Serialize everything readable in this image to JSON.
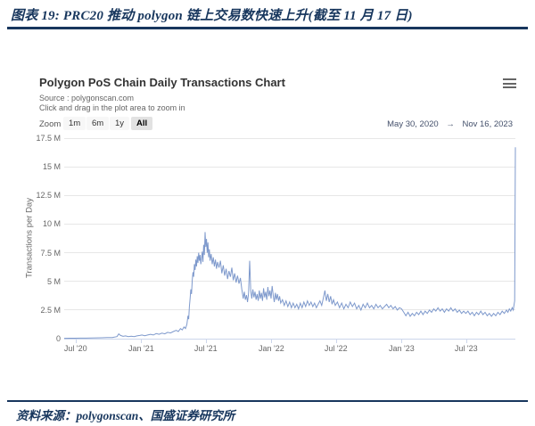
{
  "page": {
    "title": "图表 19:  PRC20 推动 polygon 链上交易数快速上升(截至 11 月 17 日)",
    "footer": "资料来源：polygonscan、国盛证券研究所",
    "accent_color": "#17365d"
  },
  "chart": {
    "source_line": "Source : polygonscan.com",
    "hint_line": "Click and drag in the plot area to zoom in",
    "toolbar": {
      "zoom_label": "Zoom",
      "buttons": [
        "1m",
        "6m",
        "1y",
        "All"
      ],
      "selected": "All",
      "range_from": "May 30, 2020",
      "range_arrow": "→",
      "range_to": "Nov 16, 2023"
    }
  },
  "chart_data": {
    "type": "line",
    "title": "Polygon PoS Chain Daily Transactions Chart",
    "ylabel": "Transactions per Day",
    "xlabel": "",
    "x_start_date": "2020-05-30",
    "x_end_date": "2023-11-16",
    "x_tick_labels": [
      "Jul '20",
      "Jan '21",
      "Jul '21",
      "Jan '22",
      "Jul '22",
      "Jan '23",
      "Jul '23"
    ],
    "x_tick_days": [
      32,
      216,
      397,
      581,
      762,
      946,
      1127
    ],
    "y_tick_labels": [
      "0",
      "2.5 M",
      "5 M",
      "7.5 M",
      "10 M",
      "12.5 M",
      "15 M",
      "17.5 M"
    ],
    "y_tick_values": [
      0,
      2.5,
      5,
      7.5,
      10,
      12.5,
      15,
      17.5
    ],
    "ylim": [
      0,
      17.5
    ],
    "unit": "millions of transactions per day",
    "grid": "horizontal",
    "legend": "none",
    "series": [
      {
        "name": "Transactions per Day",
        "color": "#7e99cc",
        "points_day_value": [
          [
            0,
            0.03
          ],
          [
            15,
            0.04
          ],
          [
            30,
            0.04
          ],
          [
            45,
            0.05
          ],
          [
            60,
            0.05
          ],
          [
            75,
            0.06
          ],
          [
            90,
            0.07
          ],
          [
            105,
            0.08
          ],
          [
            120,
            0.09
          ],
          [
            135,
            0.1
          ],
          [
            148,
            0.18
          ],
          [
            153,
            0.42
          ],
          [
            158,
            0.28
          ],
          [
            165,
            0.2
          ],
          [
            172,
            0.24
          ],
          [
            180,
            0.18
          ],
          [
            188,
            0.22
          ],
          [
            196,
            0.18
          ],
          [
            204,
            0.24
          ],
          [
            212,
            0.28
          ],
          [
            218,
            0.32
          ],
          [
            226,
            0.26
          ],
          [
            234,
            0.32
          ],
          [
            242,
            0.38
          ],
          [
            250,
            0.32
          ],
          [
            258,
            0.44
          ],
          [
            266,
            0.38
          ],
          [
            274,
            0.48
          ],
          [
            282,
            0.42
          ],
          [
            290,
            0.55
          ],
          [
            298,
            0.5
          ],
          [
            306,
            0.62
          ],
          [
            314,
            0.72
          ],
          [
            320,
            0.62
          ],
          [
            326,
            0.88
          ],
          [
            331,
            0.76
          ],
          [
            336,
            1.02
          ],
          [
            340,
            0.88
          ],
          [
            344,
            1.25
          ],
          [
            347,
            2.0
          ],
          [
            349,
            1.7
          ],
          [
            351,
            2.8
          ],
          [
            353,
            3.5
          ],
          [
            355,
            4.3
          ],
          [
            357,
            3.9
          ],
          [
            359,
            5.1
          ],
          [
            361,
            5.8
          ],
          [
            363,
            5.4
          ],
          [
            365,
            6.5
          ],
          [
            367,
            6.0
          ],
          [
            369,
            6.9
          ],
          [
            371,
            6.3
          ],
          [
            373,
            7.2
          ],
          [
            375,
            6.6
          ],
          [
            377,
            7.5
          ],
          [
            379,
            6.8
          ],
          [
            381,
            7.3
          ],
          [
            383,
            6.5
          ],
          [
            385,
            7.0
          ],
          [
            387,
            7.6
          ],
          [
            389,
            6.7
          ],
          [
            391,
            8.2
          ],
          [
            393,
            7.3
          ],
          [
            395,
            9.3
          ],
          [
            397,
            8.0
          ],
          [
            399,
            8.7
          ],
          [
            401,
            7.5
          ],
          [
            403,
            8.4
          ],
          [
            405,
            7.1
          ],
          [
            407,
            7.8
          ],
          [
            409,
            6.8
          ],
          [
            412,
            7.4
          ],
          [
            415,
            6.5
          ],
          [
            418,
            7.1
          ],
          [
            421,
            6.3
          ],
          [
            424,
            6.9
          ],
          [
            427,
            6.1
          ],
          [
            430,
            6.7
          ],
          [
            434,
            6.2
          ],
          [
            438,
            6.8
          ],
          [
            442,
            5.7
          ],
          [
            446,
            6.4
          ],
          [
            450,
            5.5
          ],
          [
            454,
            6.1
          ],
          [
            458,
            5.2
          ],
          [
            462,
            5.9
          ],
          [
            466,
            5.4
          ],
          [
            470,
            6.2
          ],
          [
            474,
            5.1
          ],
          [
            478,
            5.7
          ],
          [
            482,
            4.9
          ],
          [
            486,
            5.5
          ],
          [
            490,
            4.8
          ],
          [
            494,
            5.3
          ],
          [
            498,
            4.3
          ],
          [
            502,
            3.5
          ],
          [
            505,
            4.1
          ],
          [
            508,
            3.4
          ],
          [
            511,
            3.8
          ],
          [
            514,
            3.2
          ],
          [
            517,
            4.0
          ],
          [
            520,
            6.8
          ],
          [
            523,
            4.2
          ],
          [
            526,
            3.5
          ],
          [
            529,
            4.3
          ],
          [
            532,
            3.6
          ],
          [
            535,
            4.1
          ],
          [
            538,
            3.4
          ],
          [
            541,
            3.9
          ],
          [
            544,
            3.3
          ],
          [
            547,
            4.2
          ],
          [
            550,
            3.5
          ],
          [
            553,
            4.0
          ],
          [
            556,
            3.3
          ],
          [
            559,
            4.4
          ],
          [
            562,
            3.6
          ],
          [
            565,
            4.1
          ],
          [
            568,
            3.4
          ],
          [
            571,
            4.5
          ],
          [
            574,
            3.7
          ],
          [
            577,
            4.2
          ],
          [
            580,
            3.5
          ],
          [
            583,
            4.6
          ],
          [
            586,
            3.8
          ],
          [
            589,
            3.2
          ],
          [
            592,
            4.0
          ],
          [
            595,
            3.4
          ],
          [
            598,
            3.9
          ],
          [
            601,
            3.3
          ],
          [
            604,
            3.7
          ],
          [
            607,
            3.1
          ],
          [
            612,
            3.4
          ],
          [
            617,
            2.9
          ],
          [
            622,
            3.3
          ],
          [
            627,
            2.8
          ],
          [
            632,
            3.2
          ],
          [
            637,
            2.7
          ],
          [
            642,
            3.1
          ],
          [
            647,
            2.7
          ],
          [
            652,
            3.0
          ],
          [
            657,
            2.6
          ],
          [
            662,
            3.1
          ],
          [
            667,
            2.7
          ],
          [
            672,
            3.2
          ],
          [
            677,
            2.8
          ],
          [
            682,
            3.3
          ],
          [
            687,
            2.9
          ],
          [
            692,
            3.2
          ],
          [
            697,
            2.8
          ],
          [
            702,
            3.1
          ],
          [
            707,
            2.7
          ],
          [
            712,
            3.0
          ],
          [
            717,
            3.3
          ],
          [
            722,
            2.9
          ],
          [
            727,
            3.6
          ],
          [
            731,
            4.2
          ],
          [
            735,
            3.3
          ],
          [
            739,
            3.9
          ],
          [
            743,
            3.2
          ],
          [
            747,
            3.7
          ],
          [
            751,
            3.0
          ],
          [
            755,
            3.4
          ],
          [
            760,
            2.9
          ],
          [
            766,
            3.2
          ],
          [
            772,
            2.7
          ],
          [
            778,
            3.1
          ],
          [
            784,
            2.6
          ],
          [
            790,
            3.0
          ],
          [
            796,
            2.7
          ],
          [
            802,
            3.2
          ],
          [
            808,
            2.8
          ],
          [
            814,
            3.1
          ],
          [
            820,
            2.6
          ],
          [
            826,
            2.9
          ],
          [
            832,
            2.5
          ],
          [
            838,
            3.0
          ],
          [
            844,
            2.7
          ],
          [
            850,
            3.1
          ],
          [
            856,
            2.7
          ],
          [
            862,
            2.9
          ],
          [
            868,
            2.6
          ],
          [
            874,
            3.0
          ],
          [
            880,
            2.7
          ],
          [
            886,
            2.9
          ],
          [
            892,
            2.6
          ],
          [
            898,
            2.8
          ],
          [
            904,
            3.0
          ],
          [
            910,
            2.7
          ],
          [
            916,
            2.9
          ],
          [
            922,
            2.6
          ],
          [
            928,
            2.8
          ],
          [
            934,
            2.5
          ],
          [
            940,
            2.7
          ],
          [
            946,
            2.6
          ],
          [
            952,
            2.3
          ],
          [
            958,
            2.0
          ],
          [
            964,
            2.3
          ],
          [
            970,
            1.95
          ],
          [
            976,
            2.2
          ],
          [
            982,
            2.0
          ],
          [
            988,
            2.3
          ],
          [
            994,
            2.1
          ],
          [
            1000,
            2.4
          ],
          [
            1006,
            2.1
          ],
          [
            1012,
            2.4
          ],
          [
            1018,
            2.2
          ],
          [
            1024,
            2.5
          ],
          [
            1030,
            2.3
          ],
          [
            1036,
            2.6
          ],
          [
            1042,
            2.4
          ],
          [
            1048,
            2.7
          ],
          [
            1054,
            2.4
          ],
          [
            1060,
            2.6
          ],
          [
            1066,
            2.3
          ],
          [
            1072,
            2.6
          ],
          [
            1078,
            2.4
          ],
          [
            1084,
            2.7
          ],
          [
            1090,
            2.4
          ],
          [
            1096,
            2.6
          ],
          [
            1102,
            2.3
          ],
          [
            1108,
            2.5
          ],
          [
            1114,
            2.2
          ],
          [
            1120,
            2.4
          ],
          [
            1126,
            2.2
          ],
          [
            1132,
            2.4
          ],
          [
            1138,
            2.1
          ],
          [
            1144,
            2.3
          ],
          [
            1150,
            2.0
          ],
          [
            1156,
            2.3
          ],
          [
            1162,
            2.1
          ],
          [
            1168,
            2.4
          ],
          [
            1174,
            2.1
          ],
          [
            1180,
            2.3
          ],
          [
            1186,
            2.0
          ],
          [
            1192,
            2.2
          ],
          [
            1198,
            1.95
          ],
          [
            1204,
            2.2
          ],
          [
            1210,
            2.0
          ],
          [
            1216,
            2.3
          ],
          [
            1222,
            2.1
          ],
          [
            1228,
            2.4
          ],
          [
            1234,
            2.2
          ],
          [
            1240,
            2.5
          ],
          [
            1244,
            2.3
          ],
          [
            1248,
            2.6
          ],
          [
            1252,
            2.4
          ],
          [
            1256,
            2.7
          ],
          [
            1259,
            2.5
          ],
          [
            1261,
            2.9
          ],
          [
            1263,
            3.3
          ],
          [
            1265,
            16.7
          ]
        ]
      }
    ]
  }
}
